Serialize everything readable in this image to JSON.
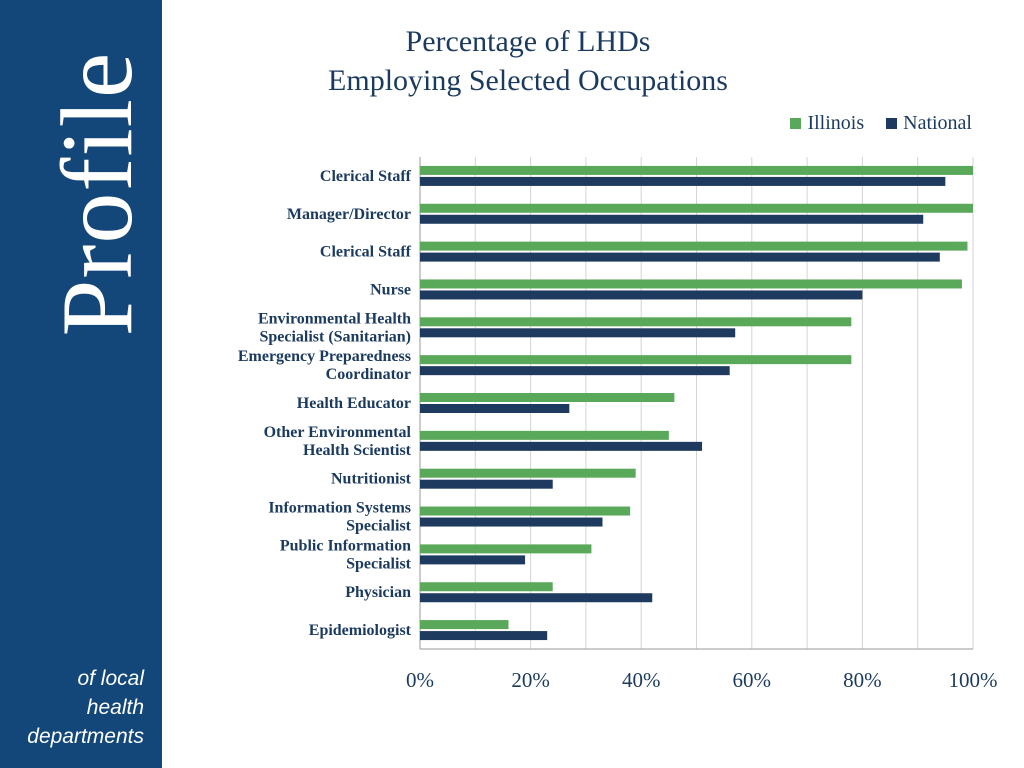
{
  "sidebar": {
    "brand_word": "Profile",
    "tagline": [
      "of local",
      "health",
      "departments"
    ],
    "background": "#13477a"
  },
  "chart_data": {
    "type": "bar",
    "orientation": "horizontal",
    "title": [
      "Percentage of LHDs",
      "Employing Selected Occupations"
    ],
    "categories": [
      "Clerical Staff",
      "Manager/Director",
      "Clerical Staff",
      "Nurse",
      "Environmental Health Specialist (Sanitarian)",
      "Emergency Preparedness Coordinator",
      "Health Educator",
      "Other Environmental Health Scientist",
      "Nutritionist",
      "Information Systems Specialist",
      "Public Information Specialist",
      "Physician",
      "Epidemiologist"
    ],
    "category_lines": [
      [
        "Clerical Staff"
      ],
      [
        "Manager/Director"
      ],
      [
        "Clerical Staff"
      ],
      [
        "Nurse"
      ],
      [
        "Environmental Health",
        "Specialist (Sanitarian)"
      ],
      [
        "Emergency Preparedness",
        "Coordinator"
      ],
      [
        "Health Educator"
      ],
      [
        "Other Environmental",
        "Health Scientist"
      ],
      [
        "Nutritionist"
      ],
      [
        "Information Systems",
        "Specialist"
      ],
      [
        "Public Information",
        "Specialist"
      ],
      [
        "Physician"
      ],
      [
        "Epidemiologist"
      ]
    ],
    "series": [
      {
        "name": "Illinois",
        "color": "#5aa85a",
        "values": [
          100,
          100,
          99,
          98,
          78,
          78,
          46,
          45,
          39,
          38,
          31,
          24,
          16
        ]
      },
      {
        "name": "National",
        "color": "#1e3a5f",
        "values": [
          95,
          91,
          94,
          80,
          57,
          56,
          27,
          51,
          24,
          33,
          19,
          42,
          23
        ]
      }
    ],
    "xlim": [
      0,
      100
    ],
    "x_ticks": [
      "0%",
      "20%",
      "40%",
      "60%",
      "80%",
      "100%"
    ],
    "x_tick_values": [
      0,
      20,
      40,
      60,
      80,
      100
    ],
    "grid": true,
    "legend_position": "top-right"
  }
}
